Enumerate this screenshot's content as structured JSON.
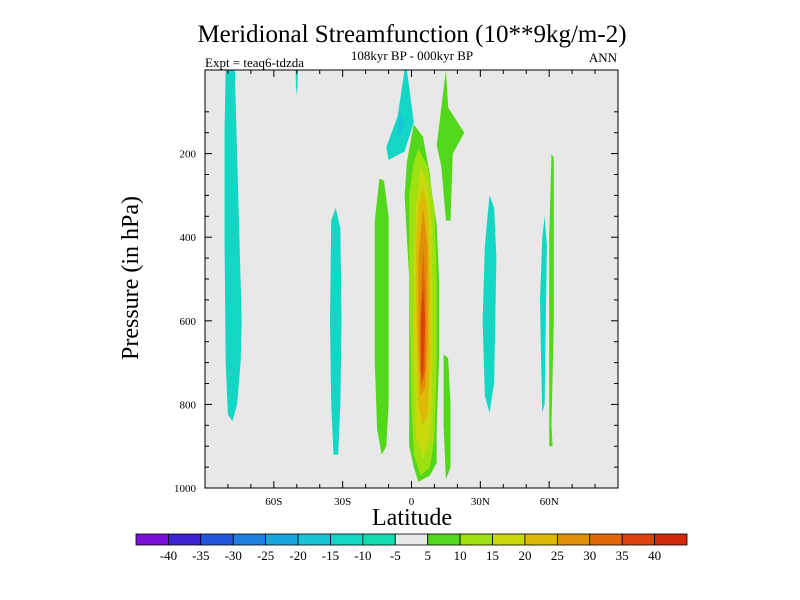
{
  "chart_data": {
    "type": "contour",
    "title": "Meridional Streamfunction (10**9kg/m-2)",
    "subtitle": "108kyr BP - 000kyr BP",
    "left_label": "Expt = teaq6-tdzda",
    "right_label": "ANN",
    "xlabel": "Latitude",
    "ylabel": "Pressure (in hPa)",
    "xlim": [
      -90,
      90
    ],
    "ylim": [
      0,
      1000
    ],
    "y_inverted": true,
    "x_ticks": [
      {
        "value": -60,
        "label": "60S"
      },
      {
        "value": -30,
        "label": "30S"
      },
      {
        "value": 0,
        "label": "0"
      },
      {
        "value": 30,
        "label": "30N"
      },
      {
        "value": 60,
        "label": "60N"
      }
    ],
    "y_ticks": [
      {
        "value": 200,
        "label": "200"
      },
      {
        "value": 400,
        "label": "400"
      },
      {
        "value": 600,
        "label": "600"
      },
      {
        "value": 800,
        "label": "800"
      },
      {
        "value": 1000,
        "label": "1000"
      }
    ],
    "colorbar": {
      "levels": [
        -40,
        -35,
        -30,
        -25,
        -20,
        -15,
        -10,
        -5,
        5,
        10,
        15,
        20,
        25,
        30,
        35,
        40
      ],
      "labels": [
        "-40",
        "-35",
        "-30",
        "-25",
        "-20",
        "-15",
        "-10",
        "-5",
        "5",
        "10",
        "15",
        "20",
        "25",
        "30",
        "35",
        "40"
      ],
      "colors": [
        "#7a10d8",
        "#3a24d0",
        "#2356dc",
        "#1e7fe0",
        "#1aa6e0",
        "#18c4d8",
        "#14d6c4",
        "#10dcb0",
        "#e8e8e8",
        "#52d81a",
        "#9ee010",
        "#c8d80c",
        "#e0b808",
        "#e09008",
        "#e06808",
        "#e04010",
        "#d02a0c"
      ]
    },
    "regions": [
      {
        "name": "south-polar-negative-band",
        "level": -10,
        "points": [
          [
            -81,
            0
          ],
          [
            -77,
            0
          ],
          [
            -76,
            200
          ],
          [
            -75,
            400
          ],
          [
            -74,
            600
          ],
          [
            -74.5,
            700
          ],
          [
            -76,
            800
          ],
          [
            -78,
            840
          ],
          [
            -80,
            825
          ],
          [
            -81,
            700
          ],
          [
            -81.5,
            400
          ],
          [
            -81.5,
            150
          ]
        ]
      },
      {
        "name": "small-upper-negative-cell",
        "level": -10,
        "points": [
          [
            -50.5,
            0
          ],
          [
            -49.5,
            0
          ],
          [
            -49.7,
            40
          ],
          [
            -50,
            60
          ],
          [
            -50.4,
            40
          ]
        ]
      },
      {
        "name": "mid-south-negative-cell",
        "level": -10,
        "points": [
          [
            -35,
            360
          ],
          [
            -33,
            330
          ],
          [
            -31,
            380
          ],
          [
            -30.5,
            600
          ],
          [
            -31,
            800
          ],
          [
            -32,
            920
          ],
          [
            -34,
            920
          ],
          [
            -35,
            800
          ],
          [
            -35.5,
            600
          ]
        ]
      },
      {
        "name": "upper-equatorial-negative-cell",
        "level": -10,
        "points": [
          [
            -10,
            215
          ],
          [
            -3,
            195
          ],
          [
            1,
            125
          ],
          [
            -2,
            0
          ],
          [
            -3,
            0
          ],
          [
            -6,
            110
          ],
          [
            -11,
            185
          ]
        ]
      },
      {
        "name": "upper-equatorial-deeper-cell",
        "level": -15,
        "points": [
          [
            -6,
            150
          ],
          [
            -4,
            155
          ],
          [
            -3,
            120
          ],
          [
            -5,
            100
          ]
        ]
      },
      {
        "name": "equatorial-positive-west-lobe",
        "level": 5,
        "points": [
          [
            -16,
            360
          ],
          [
            -14,
            260
          ],
          [
            -12,
            265
          ],
          [
            -10,
            350
          ],
          [
            -10,
            800
          ],
          [
            -11,
            900
          ],
          [
            -13,
            920
          ],
          [
            -15,
            860
          ],
          [
            -16,
            700
          ]
        ]
      },
      {
        "name": "equatorial-positive-main",
        "level": 5,
        "points": [
          [
            1,
            130
          ],
          [
            5,
            160
          ],
          [
            8,
            250
          ],
          [
            9,
            300
          ],
          [
            11,
            370
          ],
          [
            12,
            500
          ],
          [
            12,
            700
          ],
          [
            11,
            850
          ],
          [
            11,
            940
          ],
          [
            8,
            970
          ],
          [
            3,
            985
          ],
          [
            1,
            950
          ],
          [
            -1,
            900
          ],
          [
            -1,
            750
          ],
          [
            -1,
            500
          ],
          [
            -3,
            300
          ],
          [
            -2,
            220
          ],
          [
            0,
            160
          ]
        ]
      },
      {
        "name": "nh-upper-positive-lobe",
        "level": 5,
        "points": [
          [
            15,
            0
          ],
          [
            13,
            90
          ],
          [
            11,
            180
          ],
          [
            13,
            230
          ],
          [
            15,
            360
          ],
          [
            17,
            360
          ],
          [
            18,
            200
          ],
          [
            23,
            150
          ],
          [
            16,
            90
          ]
        ]
      },
      {
        "name": "nh-lower-positive-lobe",
        "level": 5,
        "points": [
          [
            14,
            680
          ],
          [
            16,
            690
          ],
          [
            17,
            800
          ],
          [
            17,
            950
          ],
          [
            15,
            980
          ],
          [
            14,
            850
          ]
        ]
      },
      {
        "name": "equatorial-level-10",
        "level": 10,
        "points": [
          [
            3,
            190
          ],
          [
            7,
            230
          ],
          [
            10,
            330
          ],
          [
            11,
            500
          ],
          [
            11,
            700
          ],
          [
            10,
            880
          ],
          [
            8,
            950
          ],
          [
            4,
            970
          ],
          [
            1,
            920
          ],
          [
            0,
            800
          ],
          [
            -1,
            500
          ],
          [
            -1,
            300
          ],
          [
            1,
            220
          ]
        ]
      },
      {
        "name": "equatorial-level-15",
        "level": 15,
        "points": [
          [
            4,
            230
          ],
          [
            7,
            270
          ],
          [
            9,
            380
          ],
          [
            9,
            600
          ],
          [
            9,
            800
          ],
          [
            8,
            880
          ],
          [
            5,
            930
          ],
          [
            2,
            880
          ],
          [
            1,
            700
          ],
          [
            1,
            450
          ],
          [
            2,
            320
          ]
        ]
      },
      {
        "name": "equatorial-level-20",
        "level": 20,
        "points": [
          [
            5,
            280
          ],
          [
            7,
            340
          ],
          [
            8,
            500
          ],
          [
            8,
            700
          ],
          [
            7,
            820
          ],
          [
            5,
            850
          ],
          [
            3,
            800
          ],
          [
            2,
            600
          ],
          [
            2,
            420
          ],
          [
            3,
            330
          ]
        ]
      },
      {
        "name": "equatorial-level-25",
        "level": 25,
        "points": [
          [
            5,
            330
          ],
          [
            7,
            420
          ],
          [
            7,
            650
          ],
          [
            6,
            760
          ],
          [
            4,
            780
          ],
          [
            3,
            650
          ],
          [
            3,
            450
          ]
        ]
      },
      {
        "name": "equatorial-level-30",
        "level": 30,
        "points": [
          [
            5,
            420
          ],
          [
            6,
            520
          ],
          [
            6,
            720
          ],
          [
            4,
            760
          ],
          [
            4,
            560
          ]
        ]
      },
      {
        "name": "equatorial-level-35",
        "level": 35,
        "points": [
          [
            5,
            520
          ],
          [
            6,
            600
          ],
          [
            5,
            740
          ],
          [
            4,
            720
          ],
          [
            4,
            600
          ]
        ]
      },
      {
        "name": "nh-30n-negative-cell",
        "level": -10,
        "points": [
          [
            32,
            420
          ],
          [
            34,
            300
          ],
          [
            36,
            330
          ],
          [
            37,
            450
          ],
          [
            36,
            750
          ],
          [
            34,
            820
          ],
          [
            32,
            780
          ],
          [
            31,
            600
          ]
        ]
      },
      {
        "name": "nh-60n-negative-band",
        "level": -10,
        "points": [
          [
            57,
            400
          ],
          [
            58,
            350
          ],
          [
            59,
            420
          ],
          [
            58,
            800
          ],
          [
            57,
            820
          ],
          [
            56.5,
            700
          ],
          [
            56,
            550
          ]
        ]
      },
      {
        "name": "nh-60n-positive-band",
        "level": 5,
        "points": [
          [
            61,
            200
          ],
          [
            62,
            210
          ],
          [
            62,
            600
          ],
          [
            61,
            850
          ],
          [
            61.5,
            900
          ],
          [
            60,
            900
          ],
          [
            60,
            700
          ],
          [
            60,
            400
          ]
        ]
      }
    ]
  }
}
